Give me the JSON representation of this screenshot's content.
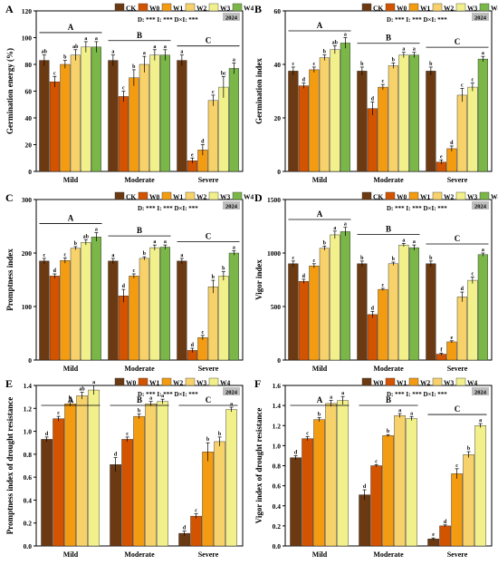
{
  "legend_a": [
    "CK",
    "W0",
    "W1",
    "W2",
    "W3",
    "W4"
  ],
  "legend_b": [
    "W0",
    "W1",
    "W2",
    "W3",
    "W4"
  ],
  "categories": [
    "Mild",
    "Moderate",
    "Severe"
  ],
  "year_badge": "2024",
  "colors_a": [
    "#6b3a12",
    "#d35400",
    "#f39c12",
    "#f7d26b",
    "#f2f08a",
    "#7ab648"
  ],
  "colors_b": [
    "#6b3a12",
    "#d35400",
    "#f39c12",
    "#f7d26b",
    "#f2f08a"
  ],
  "chart_data": [
    {
      "panel": "A",
      "type": "bar",
      "ylabel": "Germination energy (%)",
      "ylim": [
        0,
        120
      ],
      "yticks": [
        0,
        20,
        40,
        60,
        80,
        100,
        120
      ],
      "stats": "D: *** I: *** D×I: ***",
      "group_labels": [
        "A",
        "B",
        "C"
      ],
      "categories": [
        "Mild",
        "Moderate",
        "Severe"
      ],
      "series": [
        {
          "name": "CK",
          "values": [
            83,
            83,
            83
          ],
          "errors": [
            4,
            4,
            4
          ],
          "letters": [
            "ab",
            "a",
            "a"
          ]
        },
        {
          "name": "W0",
          "values": [
            67,
            56,
            8
          ],
          "errors": [
            4,
            4,
            2
          ],
          "letters": [
            "c",
            "c",
            "e"
          ]
        },
        {
          "name": "W1",
          "values": [
            80,
            70,
            16
          ],
          "errors": [
            3,
            6,
            4
          ],
          "letters": [
            "b",
            "b",
            "d"
          ]
        },
        {
          "name": "W2",
          "values": [
            87,
            80,
            53
          ],
          "errors": [
            4,
            6,
            4
          ],
          "letters": [
            "ab",
            "a",
            "c"
          ]
        },
        {
          "name": "W3",
          "values": [
            93,
            87,
            63
          ],
          "errors": [
            4,
            4,
            8
          ],
          "letters": [
            "a",
            "a",
            "bc"
          ]
        },
        {
          "name": "W4",
          "values": [
            93,
            87,
            77
          ],
          "errors": [
            4,
            4,
            4
          ],
          "letters": [
            "a",
            "a",
            "a"
          ]
        }
      ]
    },
    {
      "panel": "B",
      "type": "bar",
      "ylabel": "Germination index",
      "ylim": [
        0,
        60
      ],
      "yticks": [
        0,
        20,
        40,
        60
      ],
      "stats": "D: *** I: *** D×I: ***",
      "group_labels": [
        "A",
        "B",
        "C"
      ],
      "categories": [
        "Mild",
        "Moderate",
        "Severe"
      ],
      "series": [
        {
          "name": "CK",
          "values": [
            37.5,
            37.5,
            37.5
          ],
          "errors": [
            1.5,
            1.5,
            1.5
          ],
          "letters": [
            "c",
            "b",
            "b"
          ]
        },
        {
          "name": "W0",
          "values": [
            32,
            23.5,
            3.5
          ],
          "errors": [
            1,
            2.5,
            0.8
          ],
          "letters": [
            "d",
            "d",
            "e"
          ]
        },
        {
          "name": "W1",
          "values": [
            38,
            31.5,
            8.5
          ],
          "errors": [
            1,
            1,
            1
          ],
          "letters": [
            "c",
            "c",
            "d"
          ]
        },
        {
          "name": "W2",
          "values": [
            42.5,
            39.5,
            28.5
          ],
          "errors": [
            1,
            1,
            2.5
          ],
          "letters": [
            "b",
            "b",
            "c"
          ]
        },
        {
          "name": "W3",
          "values": [
            45.5,
            43.5,
            31.5
          ],
          "errors": [
            1.5,
            1,
            1.5
          ],
          "letters": [
            "ab",
            "a",
            "c"
          ]
        },
        {
          "name": "W4",
          "values": [
            48,
            43.5,
            42
          ],
          "errors": [
            2,
            1,
            1
          ],
          "letters": [
            "a",
            "a",
            "a"
          ]
        }
      ]
    },
    {
      "panel": "C",
      "type": "bar",
      "ylabel": "Promptness index",
      "ylim": [
        0,
        300
      ],
      "yticks": [
        0,
        100,
        200,
        300
      ],
      "stats": "D: *** I: *** D×I: ***",
      "group_labels": [
        "A",
        "B",
        "C"
      ],
      "categories": [
        "Mild",
        "Moderate",
        "Severe"
      ],
      "series": [
        {
          "name": "CK",
          "values": [
            185,
            185,
            185
          ],
          "errors": [
            5,
            5,
            5
          ],
          "letters": [
            "c",
            "a",
            "a"
          ]
        },
        {
          "name": "W0",
          "values": [
            157,
            120,
            18
          ],
          "errors": [
            4,
            12,
            4
          ],
          "letters": [
            "d",
            "d",
            "d"
          ]
        },
        {
          "name": "W1",
          "values": [
            186,
            157,
            42
          ],
          "errors": [
            5,
            4,
            4
          ],
          "letters": [
            "c",
            "c",
            "c"
          ]
        },
        {
          "name": "W2",
          "values": [
            209,
            190,
            137
          ],
          "errors": [
            3,
            3,
            12
          ],
          "letters": [
            "b",
            "b",
            "b"
          ]
        },
        {
          "name": "W3",
          "values": [
            220,
            210,
            157
          ],
          "errors": [
            5,
            5,
            8
          ],
          "letters": [
            "ab",
            "a",
            "b"
          ]
        },
        {
          "name": "W4",
          "values": [
            230,
            211,
            200
          ],
          "errors": [
            8,
            4,
            4
          ],
          "letters": [
            "a",
            "a",
            "a"
          ]
        }
      ]
    },
    {
      "panel": "D",
      "type": "bar",
      "ylabel": "Vigor index",
      "ylim": [
        0,
        1500
      ],
      "yticks": [
        0,
        500,
        1000,
        1500
      ],
      "stats": "D: *** I: *** D×I: ***",
      "group_labels": [
        "A",
        "B",
        "C"
      ],
      "categories": [
        "Mild",
        "Moderate",
        "Severe"
      ],
      "series": [
        {
          "name": "CK",
          "values": [
            900,
            900,
            900
          ],
          "errors": [
            25,
            25,
            25
          ],
          "letters": [
            "c",
            "b",
            "b"
          ]
        },
        {
          "name": "W0",
          "values": [
            735,
            425,
            55
          ],
          "errors": [
            20,
            30,
            10
          ],
          "letters": [
            "d",
            "d",
            "f"
          ]
        },
        {
          "name": "W1",
          "values": [
            880,
            660,
            170
          ],
          "errors": [
            20,
            10,
            10
          ],
          "letters": [
            "c",
            "c",
            "e"
          ]
        },
        {
          "name": "W2",
          "values": [
            1045,
            900,
            590
          ],
          "errors": [
            20,
            15,
            45
          ],
          "letters": [
            "b",
            "b",
            "d"
          ]
        },
        {
          "name": "W3",
          "values": [
            1170,
            1075,
            745
          ],
          "errors": [
            35,
            15,
            30
          ],
          "letters": [
            "a",
            "a",
            "c"
          ]
        },
        {
          "name": "W4",
          "values": [
            1200,
            1050,
            985
          ],
          "errors": [
            40,
            25,
            15
          ],
          "letters": [
            "a",
            "a",
            "a"
          ]
        }
      ]
    },
    {
      "panel": "E",
      "type": "bar",
      "ylabel": "Promptness index of drought resistance",
      "ylim": [
        0,
        1.4
      ],
      "yticks": [
        0,
        0.2,
        0.4,
        0.6,
        0.8,
        1.0,
        1.2,
        1.4
      ],
      "stats": "D: *** I: *** D×I: ***",
      "group_labels": [
        "A",
        "B",
        "C"
      ],
      "categories": [
        "Mild",
        "Moderate",
        "Severe"
      ],
      "series": [
        {
          "name": "W0",
          "values": [
            0.93,
            0.71,
            0.11
          ],
          "errors": [
            0.02,
            0.06,
            0.02
          ],
          "letters": [
            "d",
            "d",
            "d"
          ]
        },
        {
          "name": "W1",
          "values": [
            1.11,
            0.93,
            0.26
          ],
          "errors": [
            0.02,
            0.02,
            0.02
          ],
          "letters": [
            "c",
            "c",
            "c"
          ]
        },
        {
          "name": "W2",
          "values": [
            1.24,
            1.13,
            0.82
          ],
          "errors": [
            0.02,
            0.02,
            0.08
          ],
          "letters": [
            "b",
            "b",
            "b"
          ]
        },
        {
          "name": "W3",
          "values": [
            1.31,
            1.24,
            0.91
          ],
          "errors": [
            0.03,
            0.02,
            0.04
          ],
          "letters": [
            "ab",
            "a",
            "b"
          ]
        },
        {
          "name": "W4",
          "values": [
            1.36,
            1.26,
            1.19
          ],
          "errors": [
            0.04,
            0.02,
            0.02
          ],
          "letters": [
            "a",
            "a",
            "a"
          ]
        }
      ]
    },
    {
      "panel": "F",
      "type": "bar",
      "ylabel": "Vigor index of drought resistance",
      "ylim": [
        0,
        1.6
      ],
      "yticks": [
        0,
        0.2,
        0.4,
        0.6,
        0.8,
        1.0,
        1.2,
        1.4,
        1.6
      ],
      "stats": "D: *** I: *** D×I: ***",
      "group_labels": [
        "A",
        "B",
        "C"
      ],
      "categories": [
        "Mild",
        "Moderate",
        "Severe"
      ],
      "series": [
        {
          "name": "W0",
          "values": [
            0.88,
            0.51,
            0.07
          ],
          "errors": [
            0.02,
            0.05,
            0.01
          ],
          "letters": [
            "d",
            "d",
            "e"
          ]
        },
        {
          "name": "W1",
          "values": [
            1.07,
            0.8,
            0.2
          ],
          "errors": [
            0.02,
            0.01,
            0.01
          ],
          "letters": [
            "c",
            "c",
            "d"
          ]
        },
        {
          "name": "W2",
          "values": [
            1.26,
            1.1,
            0.72
          ],
          "errors": [
            0.02,
            0.01,
            0.05
          ],
          "letters": [
            "b",
            "b",
            "c"
          ]
        },
        {
          "name": "W3",
          "values": [
            1.42,
            1.3,
            0.91
          ],
          "errors": [
            0.03,
            0.02,
            0.03
          ],
          "letters": [
            "a",
            "a",
            "b"
          ]
        },
        {
          "name": "W4",
          "values": [
            1.45,
            1.27,
            1.2
          ],
          "errors": [
            0.04,
            0.02,
            0.02
          ],
          "letters": [
            "a",
            "a",
            "a"
          ]
        }
      ]
    }
  ]
}
